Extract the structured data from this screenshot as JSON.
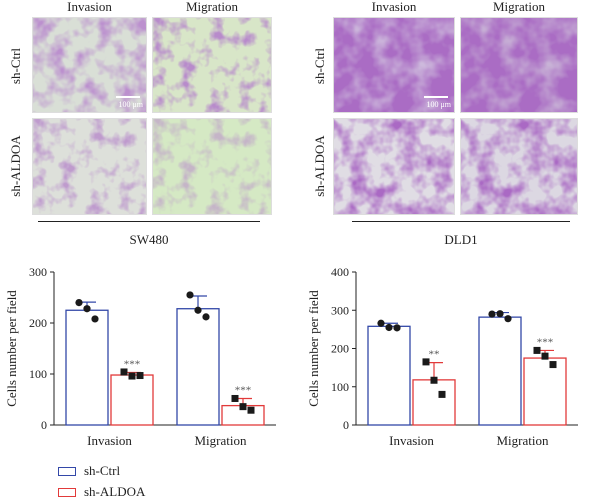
{
  "images": {
    "columns": [
      "Invasion",
      "Migration"
    ],
    "rows": [
      "sh-Ctrl",
      "sh-ALDOA"
    ],
    "scale_bar": "100 μm",
    "cell_lines": [
      "SW480",
      "DLD1"
    ]
  },
  "colors": {
    "ctrl": "#3348a8",
    "aldoa": "#e23a3a",
    "stain": "#8a4fa0"
  },
  "legend": {
    "ctrl": "sh-Ctrl",
    "aldoa": "sh-ALDOA"
  },
  "chart_data": [
    {
      "type": "bar",
      "categories": [
        "Invasion",
        "Migration"
      ],
      "ylabel": "Cells number per field",
      "ylim": [
        0,
        300
      ],
      "yticks": [
        0,
        100,
        200,
        300
      ],
      "series": [
        {
          "name": "sh-Ctrl",
          "values": [
            225,
            228
          ],
          "errors": [
            16,
            25
          ],
          "points": [
            [
              240,
              228,
              208
            ],
            [
              255,
              225,
              212
            ]
          ]
        },
        {
          "name": "sh-ALDOA",
          "values": [
            98,
            38
          ],
          "errors": [
            5,
            14
          ],
          "points": [
            [
              104,
              96,
              97
            ],
            [
              52,
              36,
              29
            ]
          ],
          "significance": [
            "***",
            "***"
          ]
        }
      ]
    },
    {
      "type": "bar",
      "categories": [
        "Invasion",
        "Migration"
      ],
      "ylabel": "Cells number per field",
      "ylim": [
        0,
        400
      ],
      "yticks": [
        0,
        100,
        200,
        300,
        400
      ],
      "series": [
        {
          "name": "sh-Ctrl",
          "values": [
            258,
            282
          ],
          "errors": [
            8,
            12
          ],
          "points": [
            [
              266,
              255,
              254
            ],
            [
              290,
              291,
              278
            ]
          ]
        },
        {
          "name": "sh-ALDOA",
          "values": [
            118,
            175
          ],
          "errors": [
            45,
            20
          ],
          "points": [
            [
              165,
              117,
              80
            ],
            [
              195,
              180,
              158
            ]
          ],
          "significance": [
            "**",
            "***"
          ]
        }
      ]
    }
  ]
}
